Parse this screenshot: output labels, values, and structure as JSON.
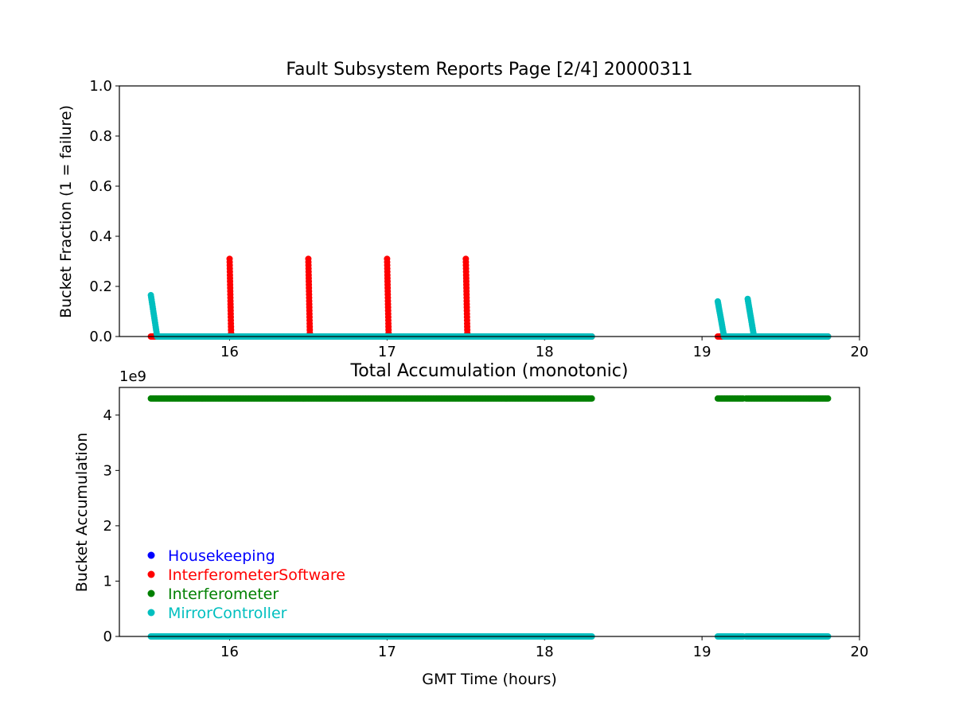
{
  "chart_data": [
    {
      "type": "scatter",
      "title": "Fault Subsystem Reports Page [2/4] 20000311",
      "xlabel": "",
      "ylabel": "Bucket Fraction (1 = failure)",
      "xlim": [
        15.3,
        20.0
      ],
      "ylim": [
        0.0,
        1.0
      ],
      "xticks": [
        16,
        17,
        18,
        19,
        20
      ],
      "yticks": [
        0.0,
        0.2,
        0.4,
        0.6,
        0.8,
        1.0
      ],
      "xtick_labels": [
        "16",
        "17",
        "18",
        "19",
        "20"
      ],
      "ytick_labels": [
        "0.0",
        "0.2",
        "0.4",
        "0.6",
        "0.8",
        "1.0"
      ],
      "grid": false,
      "series": [
        {
          "name": "Housekeeping",
          "color": "#0000ff",
          "segments": []
        },
        {
          "name": "InterferometerSoftware",
          "color": "#ff0000",
          "segments": [
            {
              "type": "spike",
              "x": 16.0,
              "dx": 0.01,
              "peak": 0.31
            },
            {
              "type": "spike",
              "x": 16.5,
              "dx": 0.01,
              "peak": 0.31
            },
            {
              "type": "spike",
              "x": 17.0,
              "dx": 0.01,
              "peak": 0.31
            },
            {
              "type": "spike",
              "x": 17.5,
              "dx": 0.01,
              "peak": 0.31
            },
            {
              "type": "flat",
              "x0": 15.5,
              "x1": 18.3,
              "y": 0.0
            },
            {
              "type": "flat",
              "x0": 19.1,
              "x1": 19.8,
              "y": 0.0
            }
          ]
        },
        {
          "name": "Interferometer",
          "color": "#008000",
          "segments": []
        },
        {
          "name": "MirrorController",
          "color": "#00bfbf",
          "segments": [
            {
              "type": "decay",
              "x": 15.5,
              "dx": 0.04,
              "peak": 0.165
            },
            {
              "type": "decay",
              "x": 19.1,
              "dx": 0.04,
              "peak": 0.14
            },
            {
              "type": "decay",
              "x": 19.29,
              "dx": 0.04,
              "peak": 0.15
            },
            {
              "type": "flat",
              "x0": 15.54,
              "x1": 18.3,
              "y": 0.0
            },
            {
              "type": "flat",
              "x0": 19.14,
              "x1": 19.8,
              "y": 0.0
            }
          ]
        }
      ]
    },
    {
      "type": "scatter",
      "title": "Total Accumulation (monotonic)",
      "xlabel": "GMT Time (hours)",
      "ylabel": "Bucket Accumulation",
      "offset_label": "1e9",
      "xlim": [
        15.3,
        20.0
      ],
      "ylim": [
        0,
        4.5
      ],
      "xticks": [
        16,
        17,
        18,
        19,
        20
      ],
      "yticks": [
        0,
        1,
        2,
        3,
        4
      ],
      "xtick_labels": [
        "16",
        "17",
        "18",
        "19",
        "20"
      ],
      "ytick_labels": [
        "0",
        "1",
        "2",
        "3",
        "4"
      ],
      "grid": false,
      "legend_position": "lower-left",
      "series": [
        {
          "name": "Housekeeping",
          "color": "#0000ff",
          "segments": []
        },
        {
          "name": "InterferometerSoftware",
          "color": "#ff0000",
          "segments": []
        },
        {
          "name": "Interferometer",
          "color": "#008000",
          "segments": [
            {
              "type": "flat",
              "x0": 15.5,
              "x1": 18.3,
              "y": 4.3
            },
            {
              "type": "flat",
              "x0": 19.1,
              "x1": 19.26,
              "y": 4.3
            },
            {
              "type": "flat",
              "x0": 19.28,
              "x1": 19.8,
              "y": 4.3
            }
          ]
        },
        {
          "name": "MirrorController",
          "color": "#00bfbf",
          "segments": [
            {
              "type": "flat",
              "x0": 15.5,
              "x1": 18.3,
              "y": 0.0
            },
            {
              "type": "flat",
              "x0": 19.1,
              "x1": 19.26,
              "y": 0.0
            },
            {
              "type": "flat",
              "x0": 19.28,
              "x1": 19.8,
              "y": 0.0
            }
          ]
        }
      ]
    }
  ]
}
